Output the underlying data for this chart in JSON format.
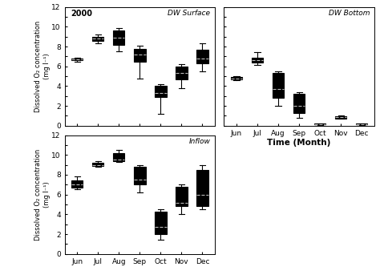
{
  "title_label": "2000",
  "subplot_labels": [
    "DW Surface",
    "DW Bottom",
    "Inflow"
  ],
  "months": [
    "Jun",
    "Jul",
    "Aug",
    "Sep",
    "Oct",
    "Nov",
    "Dec"
  ],
  "ylabel": "Dissolved O₂ concentration\n(mg l⁻¹)",
  "xlabel": "Time (Month)",
  "dw_surface": {
    "whislo": [
      6.5,
      8.3,
      7.5,
      4.8,
      1.2,
      3.8,
      5.5
    ],
    "q1": [
      6.6,
      8.6,
      8.2,
      6.5,
      2.9,
      4.7,
      6.3
    ],
    "med": [
      6.7,
      8.8,
      9.0,
      7.2,
      3.3,
      5.2,
      6.8
    ],
    "mean": [
      6.7,
      8.8,
      8.9,
      7.2,
      3.3,
      5.3,
      6.8
    ],
    "q3": [
      6.8,
      9.0,
      9.6,
      7.8,
      4.0,
      6.0,
      7.7
    ],
    "whishi": [
      6.85,
      9.2,
      9.9,
      8.1,
      4.2,
      6.2,
      8.3
    ]
  },
  "dw_bottom": {
    "whislo": [
      4.6,
      6.1,
      2.0,
      0.8,
      0.1,
      0.7,
      0.1
    ],
    "q1": [
      4.7,
      6.4,
      2.8,
      1.3,
      0.12,
      0.75,
      0.12
    ],
    "med": [
      4.8,
      6.6,
      3.9,
      1.9,
      0.15,
      0.85,
      0.15
    ],
    "mean": [
      4.8,
      6.6,
      3.7,
      2.0,
      0.15,
      0.85,
      0.15
    ],
    "q3": [
      4.9,
      6.9,
      5.3,
      3.2,
      0.2,
      0.95,
      0.2
    ],
    "whishi": [
      5.0,
      7.4,
      5.5,
      3.4,
      0.25,
      1.0,
      0.25
    ]
  },
  "inflow": {
    "whislo": [
      6.5,
      8.8,
      9.3,
      6.2,
      1.4,
      4.0,
      4.5
    ],
    "q1": [
      6.7,
      8.9,
      9.4,
      7.0,
      2.0,
      4.8,
      4.8
    ],
    "med": [
      7.0,
      9.0,
      9.5,
      7.5,
      2.7,
      5.1,
      5.0
    ],
    "mean": [
      7.0,
      9.0,
      9.5,
      7.5,
      2.7,
      5.2,
      6.0
    ],
    "q3": [
      7.4,
      9.2,
      10.2,
      8.8,
      4.3,
      6.8,
      8.5
    ],
    "whishi": [
      7.8,
      9.4,
      10.5,
      9.0,
      4.5,
      7.0,
      9.0
    ]
  },
  "ylim": [
    0,
    12
  ],
  "yticks": [
    0,
    1,
    2,
    3,
    4,
    5,
    6,
    7,
    8,
    9,
    10,
    11,
    12
  ],
  "ytick_labels": [
    "0",
    "",
    "2",
    "",
    "4",
    "",
    "6",
    "",
    "8",
    "",
    "10",
    "",
    "12"
  ],
  "box_facecolor": "white",
  "median_color": "black",
  "mean_color": "#bbbbbb",
  "line_color": "black",
  "linewidth": 0.8
}
